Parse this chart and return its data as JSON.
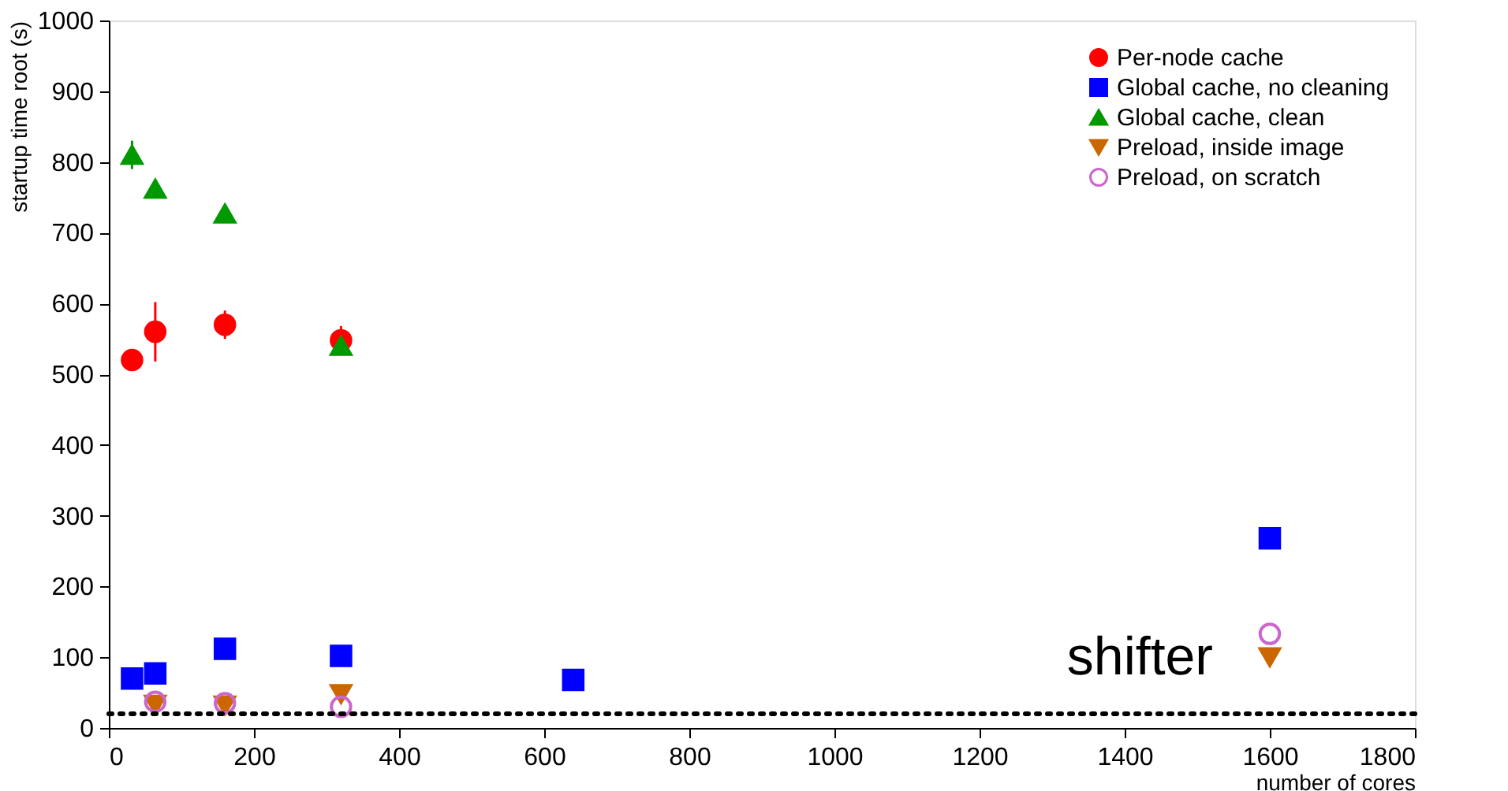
{
  "chart_data": {
    "type": "scatter",
    "xlabel": "number of cores",
    "ylabel": "startup time root (s)",
    "xlim": [
      0,
      1800
    ],
    "xticks": [
      0,
      200,
      400,
      600,
      800,
      1000,
      1200,
      1400,
      1600,
      1800
    ],
    "ylim": [
      0,
      1000
    ],
    "yticks": [
      0,
      100,
      200,
      300,
      400,
      500,
      600,
      700,
      800,
      900,
      1000
    ],
    "legend": "top right",
    "grid": false,
    "series": [
      {
        "name": "Per-node cache",
        "color": "#ff0000",
        "marker": "circle",
        "x": [
          32,
          64,
          160,
          320
        ],
        "values": [
          520,
          560,
          570,
          548
        ],
        "errors": [
          5,
          42,
          20,
          20
        ]
      },
      {
        "name": "Global cache, no cleaning",
        "color": "#0000ff",
        "marker": "square",
        "x": [
          32,
          64,
          160,
          320,
          640,
          1600
        ],
        "values": [
          70,
          77,
          112,
          102,
          68,
          268
        ]
      },
      {
        "name": "Global cache, clean",
        "color": "#009900",
        "marker": "triangle",
        "x": [
          32,
          64,
          160,
          320
        ],
        "values": [
          810,
          762,
          727,
          540
        ],
        "errors": [
          20,
          null,
          null,
          null
        ]
      },
      {
        "name": "Preload, inside image",
        "color": "#cc6600",
        "marker": "triangle-down",
        "x": [
          64,
          160,
          320,
          1600
        ],
        "values": [
          33,
          32,
          48,
          100
        ]
      },
      {
        "name": "Preload, on scratch",
        "color": "#cc66cc",
        "marker": "open-circle",
        "x": [
          64,
          160,
          320,
          1600
        ],
        "values": [
          37,
          35,
          30,
          133
        ]
      }
    ],
    "ref_lines": [
      {
        "axis": "y",
        "value": 20,
        "line_style": "dotted",
        "color": "#000000"
      }
    ],
    "annotations": [
      "shifter"
    ]
  }
}
